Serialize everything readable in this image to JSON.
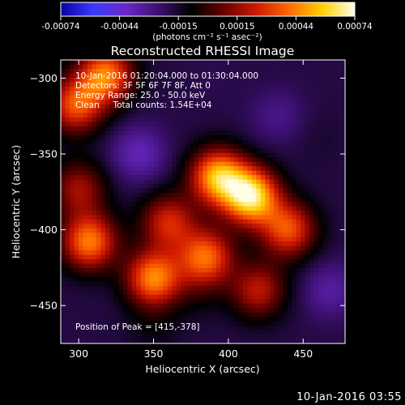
{
  "colorbar": {
    "ticks": [
      "-0.00074",
      "-0.00044",
      "-0.00015",
      "0.00015",
      "0.00044",
      "0.00074"
    ],
    "units": "(photons cm⁻² s⁻¹ asec⁻²)",
    "colormap": [
      "#0a00a0",
      "#3a3aff",
      "#6a28c8",
      "#3c1070",
      "#000000",
      "#6a0000",
      "#d01a00",
      "#ff6a00",
      "#ffd000",
      "#ffffe8"
    ]
  },
  "title": "Reconstructed RHESSI Image",
  "info": {
    "line1": "10-Jan-2016 01:20:04.000 to 01:30:04.000",
    "line2": "Detectors: 3F 5F 6F 7F 8F, Att 0",
    "line3": "Energy Range: 25.0 - 50.0 keV",
    "line4": "Clean     Total counts: 1.54E+04"
  },
  "peak_label": "Position of Peak = [415,-378]",
  "xlabel": "Heliocentric X (arcsec)",
  "ylabel": "Heliocentric Y (arcsec)",
  "timestamp": "10-Jan-2016 03:55",
  "chart_data": {
    "type": "heatmap",
    "title": "Reconstructed RHESSI Image",
    "xlabel": "Heliocentric X (arcsec)",
    "ylabel": "Heliocentric Y (arcsec)",
    "xlim": [
      288,
      478
    ],
    "ylim": [
      -475,
      -288
    ],
    "xticks": [
      300,
      350,
      400,
      450
    ],
    "yticks": [
      -300,
      -350,
      -400,
      -450
    ],
    "vmin": -0.00074,
    "vmax": 0.00074,
    "peak": [
      415,
      -378
    ],
    "blobs": [
      {
        "x": 415,
        "y": -378,
        "value": 0.00074
      },
      {
        "x": 393,
        "y": -365,
        "value": 0.0006
      },
      {
        "x": 440,
        "y": -400,
        "value": 0.0004
      },
      {
        "x": 385,
        "y": -418,
        "value": 0.00045
      },
      {
        "x": 360,
        "y": -395,
        "value": 0.0003
      },
      {
        "x": 307,
        "y": -408,
        "value": 0.0005
      },
      {
        "x": 350,
        "y": -432,
        "value": 0.00052
      },
      {
        "x": 300,
        "y": -373,
        "value": 0.0002
      },
      {
        "x": 318,
        "y": -298,
        "value": 0.0005
      },
      {
        "x": 298,
        "y": -318,
        "value": 0.0004
      },
      {
        "x": 420,
        "y": -440,
        "value": 0.00025
      },
      {
        "x": 350,
        "y": -465,
        "value": -0.0001
      },
      {
        "x": 340,
        "y": -350,
        "value": -0.0004
      },
      {
        "x": 433,
        "y": -325,
        "value": -0.0003
      },
      {
        "x": 390,
        "y": -300,
        "value": -0.0002
      },
      {
        "x": 468,
        "y": -440,
        "value": -0.00035
      },
      {
        "x": 460,
        "y": -340,
        "value": -0.00015
      },
      {
        "x": 380,
        "y": -440,
        "value": -0.0001
      }
    ]
  }
}
